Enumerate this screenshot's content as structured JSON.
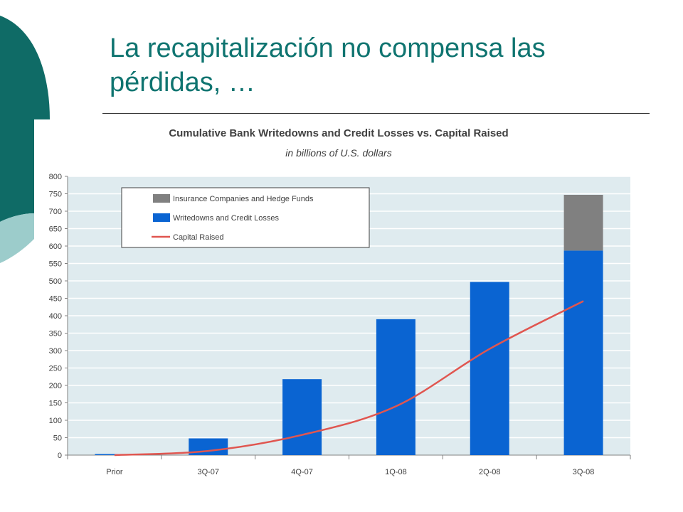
{
  "slide": {
    "title": "La recapitalización no compensa las pérdidas, …"
  },
  "colors": {
    "title": "#0f7470",
    "plot_background": "#dfebef",
    "writedowns": "#0a64d2",
    "insurance": "#808080",
    "capital": "#e05650",
    "deco_dark": "#0f6b66",
    "deco_light": "#9ccccb"
  },
  "chart_data": {
    "type": "bar",
    "title": "Cumulative Bank Writedowns and Credit Losses vs. Capital Raised",
    "subtitle": "in billions of U.S. dollars",
    "categories": [
      "Prior",
      "3Q-07",
      "4Q-07",
      "1Q-08",
      "2Q-08",
      "3Q-08"
    ],
    "series": [
      {
        "name": "Writedowns and Credit Losses",
        "kind": "bar-stacked",
        "color": "#0a64d2",
        "values": [
          3,
          48,
          218,
          390,
          497,
          587
        ]
      },
      {
        "name": "Insurance Companies and Hedge Funds",
        "kind": "bar-stacked",
        "color": "#808080",
        "values": [
          0,
          0,
          0,
          0,
          0,
          160
        ]
      },
      {
        "name": "Capital Raised",
        "kind": "line",
        "color": "#e05650",
        "values": [
          0,
          12,
          58,
          140,
          305,
          442
        ]
      }
    ],
    "legend_order": [
      "Insurance Companies and Hedge Funds",
      "Writedowns and Credit Losses",
      "Capital Raised"
    ],
    "legend_position": "top-left",
    "ylim": [
      0,
      800
    ],
    "yticks": [
      0,
      50,
      100,
      150,
      200,
      250,
      300,
      350,
      400,
      450,
      500,
      550,
      600,
      650,
      700,
      750,
      800
    ],
    "grid": true,
    "xlabel": "",
    "ylabel": ""
  }
}
